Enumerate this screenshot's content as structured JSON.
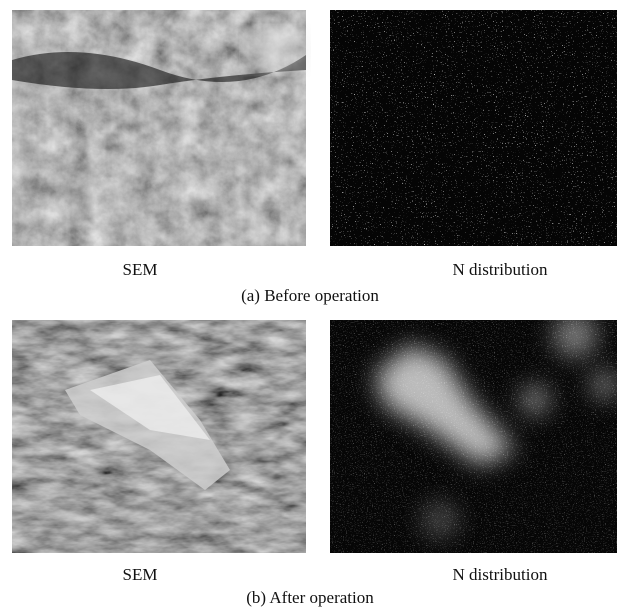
{
  "panels": [
    {
      "left_label": "SEM",
      "right_label": "N distribution",
      "caption": "(a) Before operation"
    },
    {
      "left_label": "SEM",
      "right_label": "N distribution",
      "caption": "(b) After operation"
    }
  ]
}
